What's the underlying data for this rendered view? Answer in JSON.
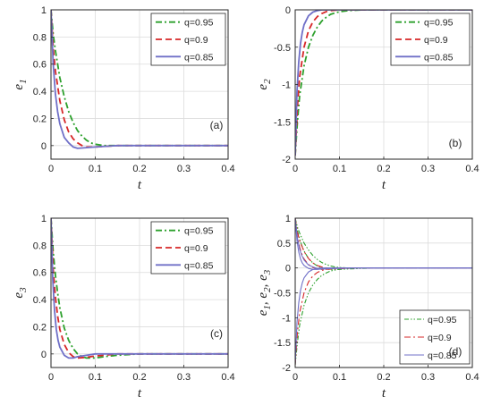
{
  "chart_data": [
    {
      "id": "a",
      "type": "line",
      "panel_label": "(a)",
      "xlabel": "t",
      "ylabel": "e",
      "ylabel_subscript": "1",
      "xlim": [
        0,
        0.4
      ],
      "ylim": [
        -0.1,
        1.0
      ],
      "xticks": [
        "0",
        "0.1",
        "0.2",
        "0.3",
        "0.4"
      ],
      "yticks": [
        "0",
        "0.2",
        "0.4",
        "0.6",
        "0.8",
        "1"
      ],
      "ytick_values": [
        0,
        0.2,
        0.4,
        0.6,
        0.8,
        1
      ],
      "grid": true,
      "legend_position": "top-right",
      "series": [
        {
          "name": "q=0.95",
          "color": "#2ca02c",
          "dash": "dashdot",
          "x": [
            0,
            0.005,
            0.01,
            0.02,
            0.03,
            0.04,
            0.05,
            0.06,
            0.07,
            0.08,
            0.09,
            0.1,
            0.12,
            0.15,
            0.2,
            0.4
          ],
          "y": [
            1.0,
            0.82,
            0.7,
            0.5,
            0.36,
            0.25,
            0.17,
            0.11,
            0.07,
            0.04,
            0.02,
            0.01,
            0.0,
            0.0,
            0.0,
            0.0
          ]
        },
        {
          "name": "q=0.9",
          "color": "#d62728",
          "dash": "dashed",
          "x": [
            0,
            0.005,
            0.01,
            0.02,
            0.03,
            0.04,
            0.05,
            0.06,
            0.07,
            0.08,
            0.1,
            0.15,
            0.2,
            0.4
          ],
          "y": [
            1.0,
            0.72,
            0.55,
            0.33,
            0.19,
            0.1,
            0.05,
            0.02,
            0.0,
            -0.01,
            -0.01,
            0.0,
            0.0,
            0.0
          ]
        },
        {
          "name": "q=0.85",
          "color": "#7070c8",
          "dash": "solid",
          "x": [
            0,
            0.005,
            0.01,
            0.015,
            0.02,
            0.03,
            0.04,
            0.05,
            0.06,
            0.08,
            0.1,
            0.15,
            0.2,
            0.4
          ],
          "y": [
            1.0,
            0.6,
            0.38,
            0.25,
            0.16,
            0.06,
            0.02,
            -0.01,
            -0.02,
            -0.015,
            -0.01,
            0.0,
            0.0,
            0.0
          ]
        }
      ]
    },
    {
      "id": "b",
      "type": "line",
      "panel_label": "(b)",
      "xlabel": "t",
      "ylabel": "e",
      "ylabel_subscript": "2",
      "xlim": [
        0,
        0.4
      ],
      "ylim": [
        -2,
        0
      ],
      "xticks": [
        "0",
        "0.1",
        "0.2",
        "0.3",
        "0.4"
      ],
      "yticks": [
        "-2",
        "-1.5",
        "-1",
        "-0.5",
        "0"
      ],
      "ytick_values": [
        -2,
        -1.5,
        -1,
        -0.5,
        0
      ],
      "grid": true,
      "legend_position": "top-right",
      "series": [
        {
          "name": "q=0.95",
          "color": "#2ca02c",
          "dash": "dashdot",
          "x": [
            0,
            0.005,
            0.01,
            0.02,
            0.03,
            0.04,
            0.05,
            0.06,
            0.07,
            0.08,
            0.1,
            0.12,
            0.15,
            0.2,
            0.4
          ],
          "y": [
            -1.95,
            -1.5,
            -1.15,
            -0.75,
            -0.5,
            -0.34,
            -0.23,
            -0.15,
            -0.1,
            -0.06,
            -0.025,
            -0.01,
            0.0,
            0.0,
            0.0
          ]
        },
        {
          "name": "q=0.9",
          "color": "#d62728",
          "dash": "dashed",
          "x": [
            0,
            0.005,
            0.01,
            0.02,
            0.03,
            0.04,
            0.05,
            0.06,
            0.07,
            0.08,
            0.1,
            0.15,
            0.2,
            0.4
          ],
          "y": [
            -1.95,
            -1.3,
            -0.9,
            -0.5,
            -0.28,
            -0.16,
            -0.09,
            -0.05,
            -0.025,
            -0.01,
            0.0,
            0.0,
            0.0,
            0.0
          ]
        },
        {
          "name": "q=0.85",
          "color": "#7070c8",
          "dash": "solid",
          "x": [
            0,
            0.004,
            0.008,
            0.012,
            0.016,
            0.02,
            0.03,
            0.04,
            0.05,
            0.06,
            0.08,
            0.1,
            0.2,
            0.4
          ],
          "y": [
            -1.95,
            -1.1,
            -0.7,
            -0.45,
            -0.3,
            -0.2,
            -0.08,
            -0.03,
            -0.01,
            0.0,
            0.0,
            0.0,
            0.0,
            0.0
          ]
        }
      ]
    },
    {
      "id": "c",
      "type": "line",
      "panel_label": "(c)",
      "xlabel": "t",
      "ylabel": "e",
      "ylabel_subscript": "3",
      "xlim": [
        0,
        0.4
      ],
      "ylim": [
        -0.1,
        1.0
      ],
      "xticks": [
        "0",
        "0.1",
        "0.2",
        "0.3",
        "0.4"
      ],
      "yticks": [
        "0",
        "0.2",
        "0.4",
        "0.6",
        "0.8",
        "1"
      ],
      "ytick_values": [
        0,
        0.2,
        0.4,
        0.6,
        0.8,
        1
      ],
      "grid": true,
      "legend_position": "top-right",
      "series": [
        {
          "name": "q=0.95",
          "color": "#2ca02c",
          "dash": "dashdot",
          "x": [
            0,
            0.005,
            0.01,
            0.015,
            0.02,
            0.03,
            0.04,
            0.05,
            0.06,
            0.07,
            0.08,
            0.1,
            0.12,
            0.15,
            0.2,
            0.4
          ],
          "y": [
            1.0,
            0.75,
            0.58,
            0.45,
            0.34,
            0.19,
            0.1,
            0.04,
            0.0,
            -0.02,
            -0.03,
            -0.03,
            -0.02,
            -0.01,
            0.0,
            0.0
          ]
        },
        {
          "name": "q=0.9",
          "color": "#d62728",
          "dash": "dashed",
          "x": [
            0,
            0.005,
            0.01,
            0.015,
            0.02,
            0.03,
            0.04,
            0.05,
            0.06,
            0.08,
            0.1,
            0.12,
            0.15,
            0.2,
            0.4
          ],
          "y": [
            1.0,
            0.62,
            0.42,
            0.28,
            0.18,
            0.07,
            0.01,
            -0.02,
            -0.03,
            -0.025,
            -0.015,
            -0.01,
            0.0,
            0.0,
            0.0
          ]
        },
        {
          "name": "q=0.85",
          "color": "#7070c8",
          "dash": "solid",
          "x": [
            0,
            0.004,
            0.008,
            0.012,
            0.016,
            0.02,
            0.03,
            0.04,
            0.05,
            0.06,
            0.08,
            0.1,
            0.15,
            0.2,
            0.4
          ],
          "y": [
            1.0,
            0.55,
            0.32,
            0.18,
            0.1,
            0.05,
            -0.01,
            -0.03,
            -0.03,
            -0.02,
            -0.01,
            0.0,
            0.0,
            0.0,
            0.0
          ]
        }
      ]
    },
    {
      "id": "d",
      "type": "line",
      "panel_label": "(d)",
      "xlabel": "t",
      "ylabel_parts": [
        {
          "base": "e",
          "sub": "1",
          "sep": ", "
        },
        {
          "base": "e",
          "sub": "2",
          "sep": ", "
        },
        {
          "base": "e",
          "sub": "3",
          "sep": ""
        }
      ],
      "xlim": [
        0,
        0.4
      ],
      "ylim": [
        -2,
        1
      ],
      "xticks": [
        "0",
        "0.1",
        "0.2",
        "0.3",
        "0.4"
      ],
      "yticks": [
        "-2",
        "-1.5",
        "-1",
        "-0.5",
        "0",
        "0.5",
        "1"
      ],
      "ytick_values": [
        -2,
        -1.5,
        -1,
        -0.5,
        0,
        0.5,
        1
      ],
      "grid": true,
      "legend_position": "bottom-right",
      "series": [
        {
          "name": "q=0.95",
          "color": "#2ca02c",
          "dash": "dashdotdot",
          "group": [
            {
              "x": [
                0,
                0.005,
                0.01,
                0.02,
                0.03,
                0.04,
                0.05,
                0.06,
                0.07,
                0.08,
                0.09,
                0.1,
                0.12,
                0.15,
                0.2,
                0.4
              ],
              "y": [
                1.0,
                0.82,
                0.7,
                0.5,
                0.36,
                0.25,
                0.17,
                0.11,
                0.07,
                0.04,
                0.02,
                0.01,
                0.0,
                0.0,
                0.0,
                0.0
              ]
            },
            {
              "x": [
                0,
                0.005,
                0.01,
                0.02,
                0.03,
                0.04,
                0.05,
                0.06,
                0.07,
                0.08,
                0.1,
                0.12,
                0.15,
                0.2,
                0.4
              ],
              "y": [
                -1.95,
                -1.5,
                -1.15,
                -0.75,
                -0.5,
                -0.34,
                -0.23,
                -0.15,
                -0.1,
                -0.06,
                -0.025,
                -0.01,
                0.0,
                0.0,
                0.0
              ]
            },
            {
              "x": [
                0,
                0.005,
                0.01,
                0.015,
                0.02,
                0.03,
                0.04,
                0.05,
                0.06,
                0.07,
                0.08,
                0.1,
                0.12,
                0.15,
                0.2,
                0.4
              ],
              "y": [
                1.0,
                0.75,
                0.58,
                0.45,
                0.34,
                0.19,
                0.1,
                0.04,
                0.0,
                -0.02,
                -0.03,
                -0.03,
                -0.02,
                -0.01,
                0.0,
                0.0
              ]
            }
          ]
        },
        {
          "name": "q=0.9",
          "color": "#d62728",
          "dash": "dashdot",
          "group": [
            {
              "x": [
                0,
                0.005,
                0.01,
                0.02,
                0.03,
                0.04,
                0.05,
                0.06,
                0.07,
                0.08,
                0.1,
                0.15,
                0.2,
                0.4
              ],
              "y": [
                1.0,
                0.72,
                0.55,
                0.33,
                0.19,
                0.1,
                0.05,
                0.02,
                0.0,
                -0.01,
                -0.01,
                0.0,
                0.0,
                0.0
              ]
            },
            {
              "x": [
                0,
                0.005,
                0.01,
                0.02,
                0.03,
                0.04,
                0.05,
                0.06,
                0.07,
                0.08,
                0.1,
                0.15,
                0.2,
                0.4
              ],
              "y": [
                -1.95,
                -1.3,
                -0.9,
                -0.5,
                -0.28,
                -0.16,
                -0.09,
                -0.05,
                -0.025,
                -0.01,
                0.0,
                0.0,
                0.0,
                0.0
              ]
            },
            {
              "x": [
                0,
                0.005,
                0.01,
                0.015,
                0.02,
                0.03,
                0.04,
                0.05,
                0.06,
                0.08,
                0.1,
                0.12,
                0.15,
                0.2,
                0.4
              ],
              "y": [
                1.0,
                0.62,
                0.42,
                0.28,
                0.18,
                0.07,
                0.01,
                -0.02,
                -0.03,
                -0.025,
                -0.015,
                -0.01,
                0.0,
                0.0,
                0.0
              ]
            }
          ]
        },
        {
          "name": "q=0.85",
          "color": "#7070c8",
          "dash": "solid",
          "group": [
            {
              "x": [
                0,
                0.005,
                0.01,
                0.015,
                0.02,
                0.03,
                0.04,
                0.05,
                0.06,
                0.08,
                0.1,
                0.15,
                0.2,
                0.4
              ],
              "y": [
                1.0,
                0.6,
                0.38,
                0.25,
                0.16,
                0.06,
                0.02,
                -0.01,
                -0.02,
                -0.015,
                -0.01,
                0.0,
                0.0,
                0.0
              ]
            },
            {
              "x": [
                0,
                0.004,
                0.008,
                0.012,
                0.016,
                0.02,
                0.03,
                0.04,
                0.05,
                0.06,
                0.08,
                0.1,
                0.2,
                0.4
              ],
              "y": [
                -1.95,
                -1.1,
                -0.7,
                -0.45,
                -0.3,
                -0.2,
                -0.08,
                -0.03,
                -0.01,
                0.0,
                0.0,
                0.0,
                0.0,
                0.0
              ]
            },
            {
              "x": [
                0,
                0.004,
                0.008,
                0.012,
                0.016,
                0.02,
                0.03,
                0.04,
                0.05,
                0.06,
                0.08,
                0.1,
                0.15,
                0.2,
                0.4
              ],
              "y": [
                1.0,
                0.55,
                0.32,
                0.18,
                0.1,
                0.05,
                -0.01,
                -0.03,
                -0.03,
                -0.02,
                -0.01,
                0.0,
                0.0,
                0.0,
                0.0
              ]
            }
          ]
        }
      ]
    }
  ]
}
